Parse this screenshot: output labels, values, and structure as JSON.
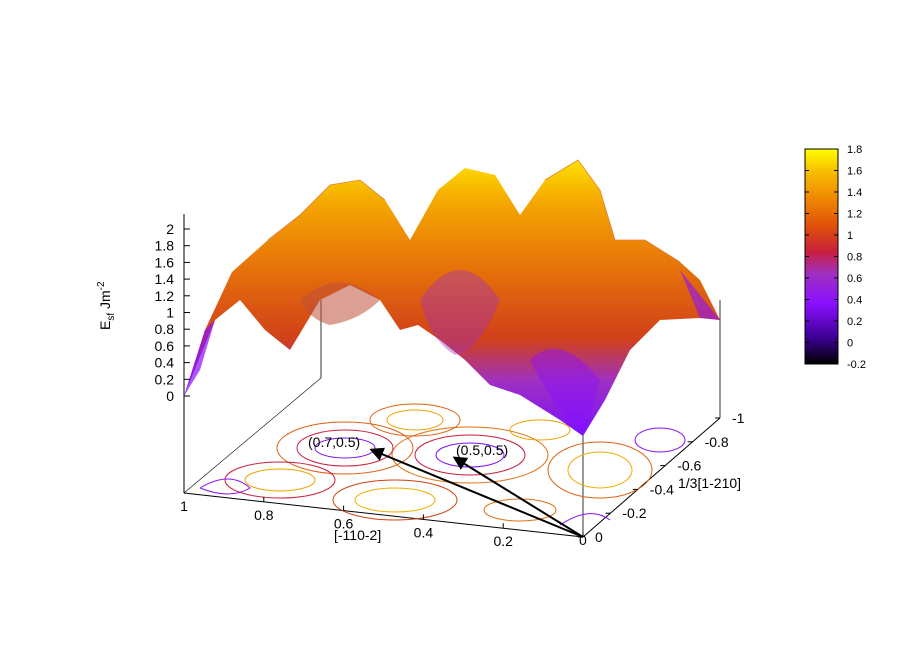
{
  "chart_data": {
    "type": "surface3d",
    "zlabel": {
      "main": "E",
      "sub": "sf",
      "unit": " Jm",
      "sup": "-2"
    },
    "xlabel": "[-110-2]",
    "ylabel": "1/3[1-210]",
    "z_ticks": [
      "0",
      "0.2",
      "0.4",
      "0.6",
      "0.8",
      "1",
      "1.2",
      "1.4",
      "1.6",
      "1.8",
      "2"
    ],
    "z_tick_values": [
      0,
      0.2,
      0.4,
      0.6,
      0.8,
      1,
      1.2,
      1.4,
      1.6,
      1.8,
      2
    ],
    "x_ticks": [
      "1",
      "0.8",
      "0.6",
      "0.4",
      "0.2",
      "0"
    ],
    "x_tick_values": [
      1,
      0.8,
      0.6,
      0.4,
      0.2,
      0
    ],
    "y_ticks": [
      "0",
      "-0.2",
      "-0.4",
      "-0.6",
      "-0.8",
      "-1"
    ],
    "y_tick_values": [
      0,
      -0.2,
      -0.4,
      -0.6,
      -0.8,
      -1
    ],
    "colorbar_ticks": [
      "1.8",
      "1.6",
      "1.4",
      "1.2",
      "1",
      "0.8",
      "0.6",
      "0.4",
      "0.2",
      "0",
      "-0.2"
    ],
    "colorbar_values": [
      1.8,
      1.6,
      1.4,
      1.2,
      1,
      0.8,
      0.6,
      0.4,
      0.2,
      0,
      -0.2
    ],
    "colorbar_range": [
      -0.2,
      1.8
    ],
    "colormap": [
      "#000000",
      "#3a0090",
      "#8a10ff",
      "#a030c0",
      "#c82040",
      "#e0500a",
      "#f08c00",
      "#f8c000",
      "#ffff00"
    ],
    "surface_ridge": [
      {
        "x": 1.0,
        "y": 0.0,
        "z": 0.0
      },
      {
        "x": 0.9,
        "y": -0.2,
        "z": 1.1
      },
      {
        "x": 0.75,
        "y": -0.4,
        "z": 1.2
      },
      {
        "x": 0.6,
        "y": -0.6,
        "z": 1.75
      },
      {
        "x": 0.45,
        "y": -0.65,
        "z": 1.45
      },
      {
        "x": 0.3,
        "y": -0.8,
        "z": 1.85
      },
      {
        "x": 0.15,
        "y": -0.9,
        "z": 1.65
      },
      {
        "x": 0.0,
        "y": -1.0,
        "z": 0.8
      }
    ],
    "vectors": [
      {
        "label": "(0.7,0.5)",
        "x": 0.7,
        "y": -0.5
      },
      {
        "label": "(0.5,0.5)",
        "x": 0.5,
        "y": -0.5
      }
    ],
    "origin_label": "0"
  }
}
